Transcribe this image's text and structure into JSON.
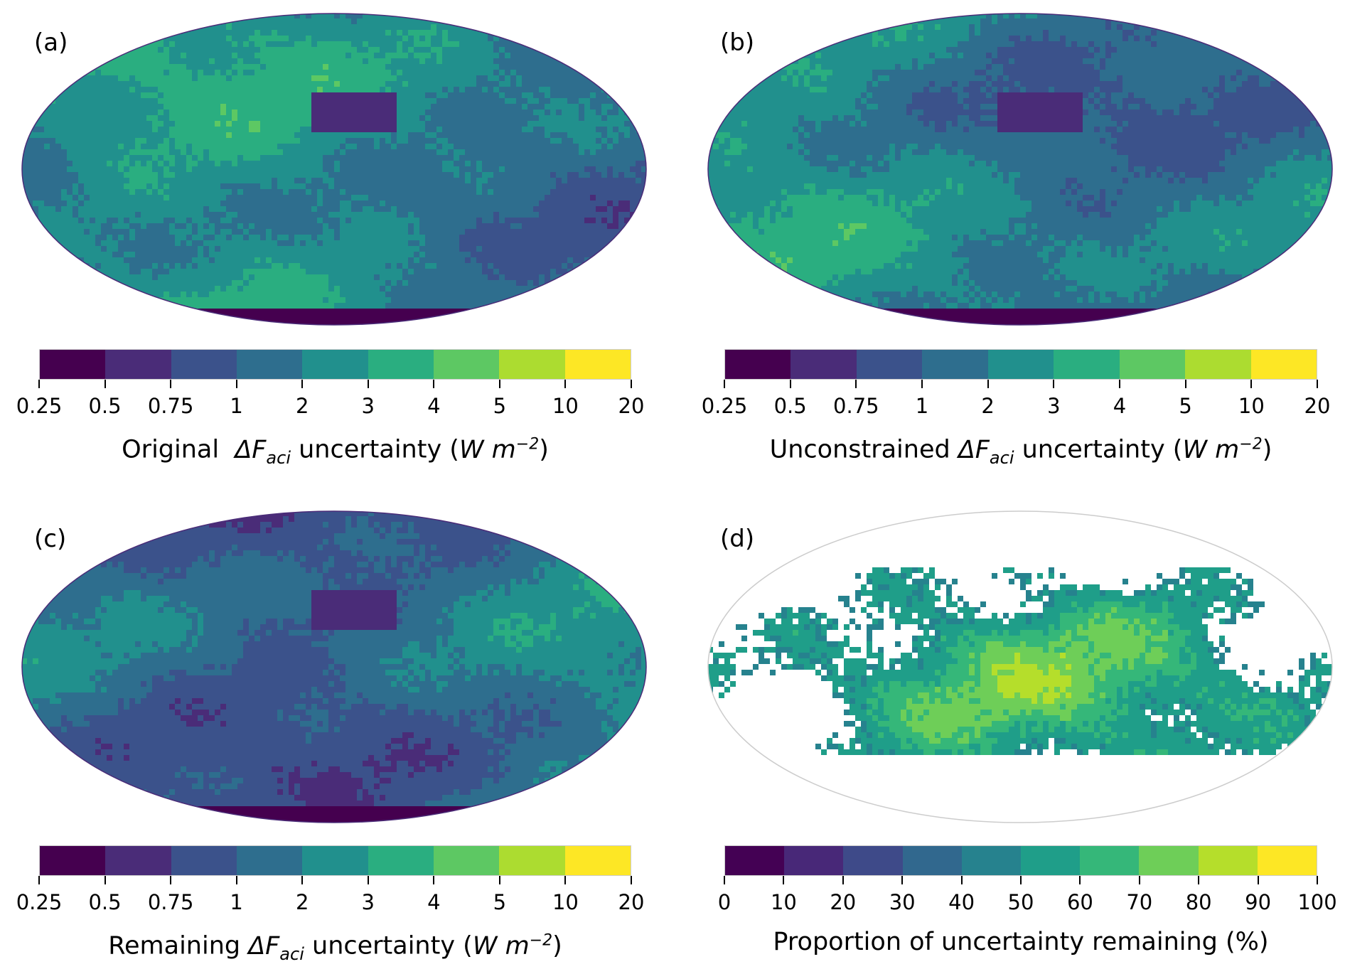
{
  "panels": [
    {
      "id": "a",
      "label": "(a)",
      "map_style": "full",
      "colorbar": {
        "ticks": [
          "0.25",
          "0.5",
          "0.75",
          "1",
          "2",
          "3",
          "4",
          "5",
          "10",
          "20"
        ],
        "label_prefix": "Original  ",
        "delta": "ΔF",
        "sub": "aci",
        "label_mid": " uncertainty (",
        "unit": "W m",
        "sup": "−2",
        "label_suffix": ")"
      }
    },
    {
      "id": "b",
      "label": "(b)",
      "map_style": "full",
      "colorbar": {
        "ticks": [
          "0.25",
          "0.5",
          "0.75",
          "1",
          "2",
          "3",
          "4",
          "5",
          "10",
          "20"
        ],
        "label_prefix": "Unconstrained ",
        "delta": "ΔF",
        "sub": "aci",
        "label_mid": " uncertainty (",
        "unit": "W m",
        "sup": "−2",
        "label_suffix": ")"
      }
    },
    {
      "id": "c",
      "label": "(c)",
      "map_style": "full",
      "colorbar": {
        "ticks": [
          "0.25",
          "0.5",
          "0.75",
          "1",
          "2",
          "3",
          "4",
          "5",
          "10",
          "20"
        ],
        "label_prefix": "Remaining ",
        "delta": "ΔF",
        "sub": "aci",
        "label_mid": " uncertainty (",
        "unit": "W m",
        "sup": "−2",
        "label_suffix": ")"
      }
    },
    {
      "id": "d",
      "label": "(d)",
      "map_style": "masked",
      "colorbar": {
        "ticks": [
          "0",
          "10",
          "20",
          "30",
          "40",
          "50",
          "60",
          "70",
          "80",
          "90",
          "100"
        ],
        "label_text": "Proportion of uncertainty remaining (%)"
      }
    }
  ],
  "colormap_9": [
    "#45004f",
    "#4a2c78",
    "#3b528b",
    "#2e6e8e",
    "#21908d",
    "#2aae80",
    "#5dc863",
    "#acdc30",
    "#fde725"
  ],
  "colormap_10": [
    "#440154",
    "#482878",
    "#3e4a89",
    "#31688e",
    "#26828e",
    "#1f9e89",
    "#35b779",
    "#6ece58",
    "#b5de2b",
    "#fde725"
  ]
}
